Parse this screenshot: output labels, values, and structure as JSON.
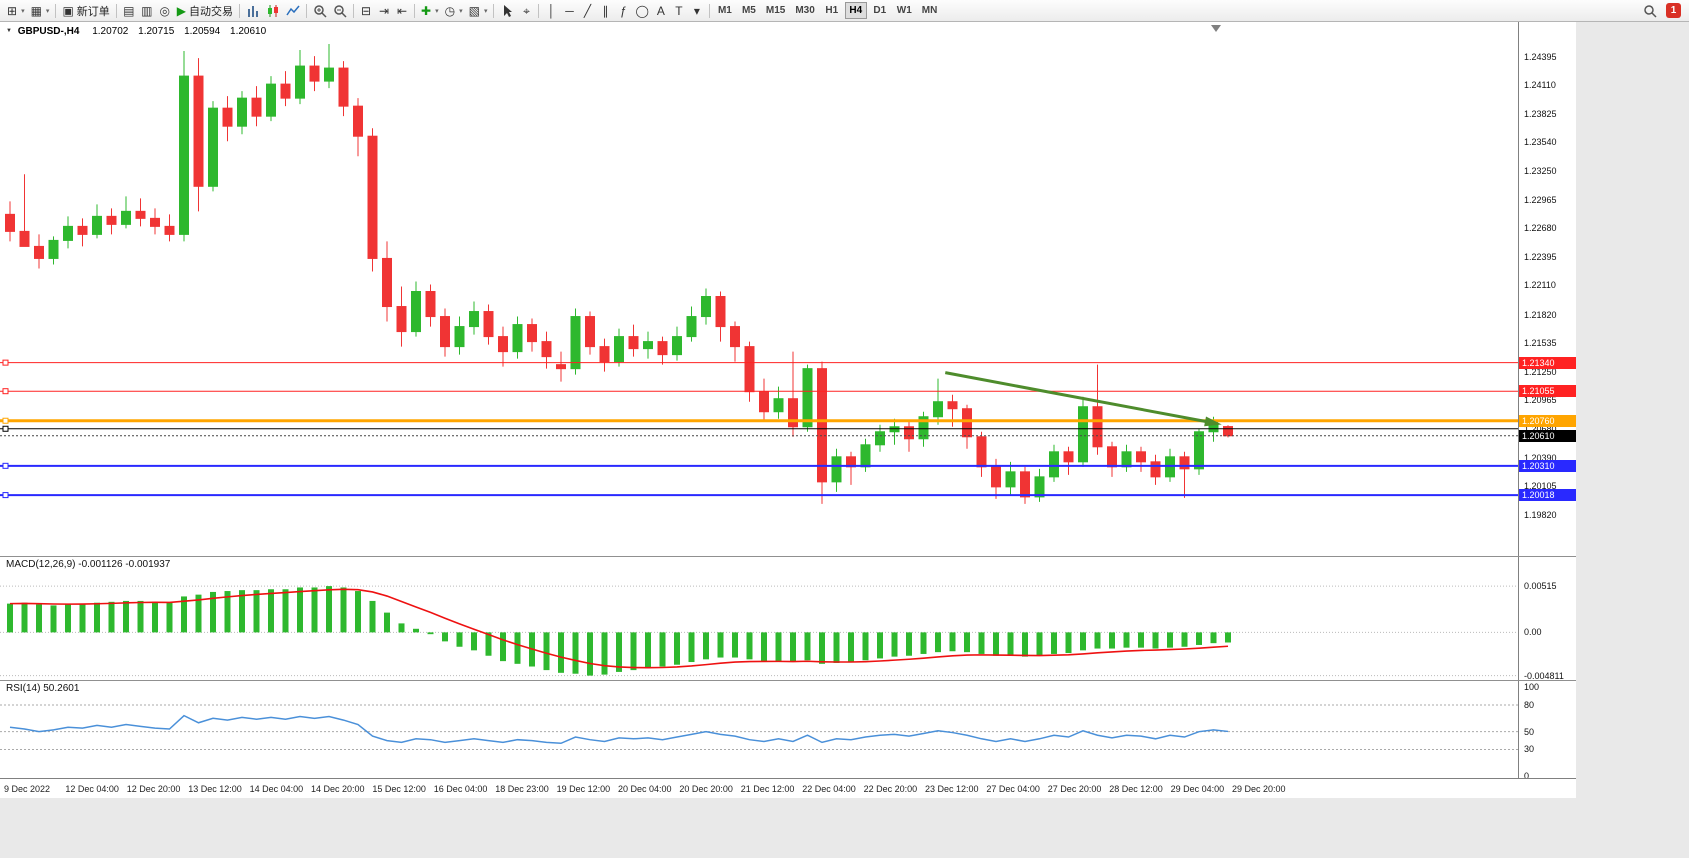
{
  "window": {
    "notification_count": "1"
  },
  "toolbar": {
    "items": [
      {
        "name": "new-chart-button",
        "glyph": "⊞",
        "dd": true
      },
      {
        "name": "profiles-button",
        "glyph": "▦",
        "dd": true
      },
      {
        "sep": true
      },
      {
        "name": "new-order-button",
        "glyph": "▣",
        "label": "新订单"
      },
      {
        "sep": true
      },
      {
        "name": "market-watch-button",
        "glyph": "▤"
      },
      {
        "name": "data-window-button",
        "glyph": "▥"
      },
      {
        "name": "strategy-tester-button",
        "glyph": "◎"
      },
      {
        "name": "auto-trading-button",
        "glyph": "▶",
        "glyph_color": "#149914",
        "label": "自动交易"
      },
      {
        "sep": true
      },
      {
        "name": "bar-chart-button",
        "glyph": "#bars"
      },
      {
        "name": "candlestick-chart-button",
        "glyph": "#candles"
      },
      {
        "name": "line-chart-button",
        "glyph": "#line"
      },
      {
        "sep": true
      },
      {
        "name": "zoom-in-button",
        "glyph": "#zoomin"
      },
      {
        "name": "zoom-out-button",
        "glyph": "#zoomout"
      },
      {
        "sep": true
      },
      {
        "name": "tile-windows-button",
        "glyph": "⊟"
      },
      {
        "name": "auto-scroll-button",
        "glyph": "⇥"
      },
      {
        "name": "chart-shift-button",
        "glyph": "⇤"
      },
      {
        "sep": true
      },
      {
        "name": "indicators-button",
        "glyph": "✚",
        "glyph_color": "#149914",
        "dd": true
      },
      {
        "name": "periods-button",
        "glyph": "◷",
        "dd": true
      },
      {
        "name": "templates-button",
        "glyph": "▧",
        "dd": true
      },
      {
        "sep": true
      },
      {
        "name": "cursor-button",
        "glyph": "#cursor"
      },
      {
        "name": "crosshair-button",
        "glyph": "⌖"
      },
      {
        "sep": true
      },
      {
        "name": "vertical-line-button",
        "glyph": "│"
      },
      {
        "name": "horizontal-line-button",
        "glyph": "─"
      },
      {
        "name": "trendline-button",
        "glyph": "╱"
      },
      {
        "name": "channel-button",
        "glyph": "∥"
      },
      {
        "name": "fibonacci-button",
        "glyph": "ƒ"
      },
      {
        "name": "shapes-button",
        "glyph": "◯"
      },
      {
        "name": "arrows-button",
        "glyph": "A"
      },
      {
        "name": "text-button",
        "glyph": "T"
      },
      {
        "name": "objects-dropdown-button",
        "glyph": "▾"
      },
      {
        "sep": true
      }
    ],
    "timeframes": {
      "items": [
        "M1",
        "M5",
        "M15",
        "M30",
        "H1",
        "H4",
        "D1",
        "W1",
        "MN"
      ],
      "active": "H4"
    }
  },
  "chart": {
    "title": "GBPUSD-,H4",
    "open": "1.20702",
    "high": "1.20715",
    "low": "1.20594",
    "close": "1.20610"
  },
  "chart_data": {
    "type": "candlestick",
    "symbol": "GBPUSD-",
    "timeframe": "H4",
    "colors": {
      "bull": "#2eb82e",
      "bear": "#f03434",
      "macd_histogram": "#2eb82e",
      "macd_signal": "#ee1111",
      "rsi_line": "#4a90d9",
      "hline_red": "#ff2222",
      "hline_blue": "#2929ff",
      "hline_orange": "#ffa500",
      "hline_black": "#000000",
      "trend_arrow": "#4e8c2c"
    },
    "x_labels": [
      "9 Dec 2022",
      "12 Dec 04:00",
      "12 Dec 20:00",
      "13 Dec 12:00",
      "14 Dec 04:00",
      "14 Dec 20:00",
      "15 Dec 12:00",
      "16 Dec 04:00",
      "18 Dec 23:00",
      "19 Dec 12:00",
      "20 Dec 04:00",
      "20 Dec 20:00",
      "21 Dec 12:00",
      "22 Dec 04:00",
      "22 Dec 20:00",
      "23 Dec 12:00",
      "27 Dec 04:00",
      "27 Dec 20:00",
      "28 Dec 12:00",
      "29 Dec 04:00",
      "29 Dec 20:00"
    ],
    "y_axis_ticks": [
      "1.24395",
      "1.24110",
      "1.23825",
      "1.23540",
      "1.23250",
      "1.22965",
      "1.22680",
      "1.22395",
      "1.22110",
      "1.21820",
      "1.21535",
      "1.21250",
      "1.20965",
      "1.20680",
      "1.20390",
      "1.20105",
      "1.19820"
    ],
    "price_pane_range": [
      1.1941,
      1.2474
    ],
    "ohlc": {
      "open": [
        1.2282,
        1.2265,
        1.225,
        1.2238,
        1.2256,
        1.227,
        1.2262,
        1.228,
        1.2272,
        1.2285,
        1.2278,
        1.227,
        1.2262,
        1.242,
        1.231,
        1.2388,
        1.237,
        1.2398,
        1.238,
        1.2412,
        1.2398,
        1.243,
        1.2415,
        1.2428,
        1.239,
        1.236,
        1.2238,
        1.219,
        1.2165,
        1.2205,
        1.218,
        1.215,
        1.217,
        1.2185,
        1.216,
        1.2145,
        1.2172,
        1.2155,
        1.2132,
        1.2128,
        1.218,
        1.215,
        1.2135,
        1.216,
        1.2148,
        1.2155,
        1.2142,
        1.216,
        1.218,
        1.22,
        1.217,
        1.215,
        1.2105,
        1.2085,
        1.2098,
        1.207,
        1.2128,
        1.2015,
        1.204,
        1.203,
        1.2052,
        1.2065,
        1.207,
        1.2058,
        1.208,
        1.2095,
        1.2088,
        1.206,
        1.203,
        1.201,
        1.2025,
        1.2,
        1.202,
        1.2045,
        1.2035,
        1.209,
        1.205,
        1.203,
        1.2045,
        1.2035,
        1.202,
        1.204,
        1.2028,
        1.2065,
        1.20702
      ],
      "high": [
        1.2295,
        1.2322,
        1.2262,
        1.226,
        1.228,
        1.2278,
        1.2292,
        1.2288,
        1.23,
        1.2298,
        1.2288,
        1.2282,
        1.2445,
        1.2438,
        1.2395,
        1.24,
        1.2405,
        1.241,
        1.242,
        1.2425,
        1.2446,
        1.244,
        1.2452,
        1.2435,
        1.2398,
        1.2368,
        1.2255,
        1.221,
        1.2215,
        1.2212,
        1.2188,
        1.218,
        1.2195,
        1.2192,
        1.217,
        1.218,
        1.2178,
        1.2165,
        1.2145,
        1.2188,
        1.2185,
        1.2158,
        1.2168,
        1.2172,
        1.2165,
        1.216,
        1.217,
        1.219,
        1.2208,
        1.2205,
        1.2175,
        1.2155,
        1.2118,
        1.211,
        1.2145,
        1.2132,
        1.2135,
        1.2048,
        1.2045,
        1.2058,
        1.2072,
        1.2078,
        1.2075,
        1.2085,
        1.2118,
        1.2102,
        1.2092,
        1.2065,
        1.2038,
        1.2035,
        1.203,
        1.2028,
        1.2052,
        1.205,
        1.21,
        1.2132,
        1.2055,
        1.2052,
        1.205,
        1.2042,
        1.2048,
        1.2045,
        1.2068,
        1.208,
        1.20715
      ],
      "low": [
        1.2255,
        1.2258,
        1.2228,
        1.2232,
        1.2248,
        1.225,
        1.2258,
        1.2262,
        1.2268,
        1.227,
        1.2262,
        1.2255,
        1.2255,
        1.2285,
        1.2305,
        1.2355,
        1.2362,
        1.237,
        1.2375,
        1.239,
        1.2392,
        1.2405,
        1.2408,
        1.238,
        1.234,
        1.2225,
        1.2175,
        1.215,
        1.216,
        1.217,
        1.214,
        1.2142,
        1.2162,
        1.2152,
        1.213,
        1.2138,
        1.2145,
        1.2128,
        1.2115,
        1.2122,
        1.2142,
        1.2125,
        1.213,
        1.214,
        1.2138,
        1.2132,
        1.2136,
        1.2155,
        1.2172,
        1.2155,
        1.2135,
        1.2095,
        1.2075,
        1.2078,
        1.206,
        1.2065,
        1.1993,
        1.2005,
        1.2012,
        1.2025,
        1.2045,
        1.2052,
        1.2045,
        1.205,
        1.2072,
        1.207,
        1.2048,
        1.202,
        1.1998,
        1.2002,
        1.1993,
        1.1995,
        1.2015,
        1.2022,
        1.203,
        1.2042,
        1.202,
        1.2025,
        1.2025,
        1.2012,
        1.2015,
        1.1999,
        1.2022,
        1.2055,
        1.20594
      ],
      "close": [
        1.2265,
        1.225,
        1.2238,
        1.2256,
        1.227,
        1.2262,
        1.228,
        1.2272,
        1.2285,
        1.2278,
        1.227,
        1.2262,
        1.242,
        1.231,
        1.2388,
        1.237,
        1.2398,
        1.238,
        1.2412,
        1.2398,
        1.243,
        1.2415,
        1.2428,
        1.239,
        1.236,
        1.2238,
        1.219,
        1.2165,
        1.2205,
        1.218,
        1.215,
        1.217,
        1.2185,
        1.216,
        1.2145,
        1.2172,
        1.2155,
        1.214,
        1.2128,
        1.218,
        1.215,
        1.2135,
        1.216,
        1.2148,
        1.2155,
        1.2142,
        1.216,
        1.218,
        1.22,
        1.217,
        1.215,
        1.2105,
        1.2085,
        1.2098,
        1.207,
        1.2128,
        1.2015,
        1.204,
        1.203,
        1.2052,
        1.2065,
        1.207,
        1.2058,
        1.208,
        1.2095,
        1.2088,
        1.206,
        1.203,
        1.201,
        1.2025,
        1.2,
        1.202,
        1.2045,
        1.2035,
        1.209,
        1.205,
        1.203,
        1.2045,
        1.2035,
        1.202,
        1.204,
        1.2028,
        1.2065,
        1.2072,
        1.2061
      ]
    },
    "objects": {
      "hlines": [
        {
          "price": 1.2134,
          "label": "1.21340",
          "color_key": "hline_red",
          "width": 1
        },
        {
          "price": 1.21055,
          "label": "1.21055",
          "color_key": "hline_red",
          "width": 1
        },
        {
          "price": 1.2076,
          "label": "1.20760",
          "color_key": "hline_orange",
          "width": 3
        },
        {
          "price": 1.2068,
          "label": null,
          "color_key": "hline_black",
          "width": 1
        },
        {
          "price": 1.2031,
          "label": "1.20310",
          "color_key": "hline_blue",
          "width": 2
        },
        {
          "price": 1.20018,
          "label": "1.20018",
          "color_key": "hline_blue",
          "width": 2
        }
      ],
      "bid_line": {
        "price": 1.2061,
        "label": "1.20610"
      },
      "trend_arrow": {
        "from_bar": 64.5,
        "from_price": 1.2124,
        "to_bar": 83.3,
        "to_price": 1.2073
      }
    },
    "indicators": [
      {
        "name": "MACD",
        "label": "MACD(12,26,9) -0.001126 -0.001937",
        "params": [
          12,
          26,
          9
        ],
        "value": -0.001126,
        "signal": -0.001937,
        "axis_ticks": [
          "0.00515",
          "0.00",
          "-0.004811"
        ],
        "values": [
          0.0032,
          0.0033,
          0.0031,
          0.003,
          0.0031,
          0.0032,
          0.0033,
          0.0034,
          0.0035,
          0.0035,
          0.0034,
          0.0033,
          0.004,
          0.0042,
          0.0045,
          0.0046,
          0.0047,
          0.0047,
          0.0048,
          0.0048,
          0.005,
          0.005,
          0.00515,
          0.005,
          0.0046,
          0.0035,
          0.0022,
          0.001,
          0.0004,
          -0.0002,
          -0.001,
          -0.0016,
          -0.002,
          -0.0026,
          -0.0032,
          -0.0035,
          -0.0038,
          -0.0042,
          -0.0045,
          -0.0046,
          -0.004811,
          -0.0047,
          -0.0044,
          -0.0042,
          -0.004,
          -0.0038,
          -0.0036,
          -0.0033,
          -0.003,
          -0.0028,
          -0.0028,
          -0.003,
          -0.0032,
          -0.0032,
          -0.0033,
          -0.0031,
          -0.0035,
          -0.0034,
          -0.0033,
          -0.0031,
          -0.0029,
          -0.0027,
          -0.0026,
          -0.0024,
          -0.0022,
          -0.0021,
          -0.0022,
          -0.0024,
          -0.0026,
          -0.0026,
          -0.0027,
          -0.0026,
          -0.0024,
          -0.0023,
          -0.002,
          -0.0018,
          -0.0018,
          -0.0017,
          -0.0017,
          -0.0018,
          -0.0017,
          -0.0016,
          -0.0014,
          -0.0012,
          -0.001126
        ]
      },
      {
        "name": "RSI",
        "label": "RSI(14) 50.2601",
        "params": [
          14
        ],
        "value": 50.2601,
        "axis_ticks": [
          100,
          80,
          50,
          30,
          0
        ],
        "levels": [
          80,
          50,
          30
        ],
        "values": [
          55,
          53,
          50,
          52,
          55,
          54,
          57,
          55,
          58,
          56,
          54,
          53,
          68,
          60,
          65,
          63,
          66,
          64,
          66,
          64,
          67,
          65,
          67,
          63,
          58,
          45,
          40,
          38,
          42,
          41,
          38,
          40,
          42,
          40,
          38,
          41,
          40,
          38,
          37,
          44,
          41,
          39,
          43,
          42,
          43,
          41,
          44,
          47,
          50,
          47,
          45,
          41,
          39,
          42,
          39,
          46,
          38,
          42,
          41,
          44,
          46,
          47,
          45,
          48,
          51,
          49,
          46,
          42,
          39,
          42,
          39,
          42,
          46,
          44,
          51,
          46,
          43,
          46,
          45,
          42,
          46,
          44,
          50,
          52,
          50.26
        ]
      }
    ]
  }
}
